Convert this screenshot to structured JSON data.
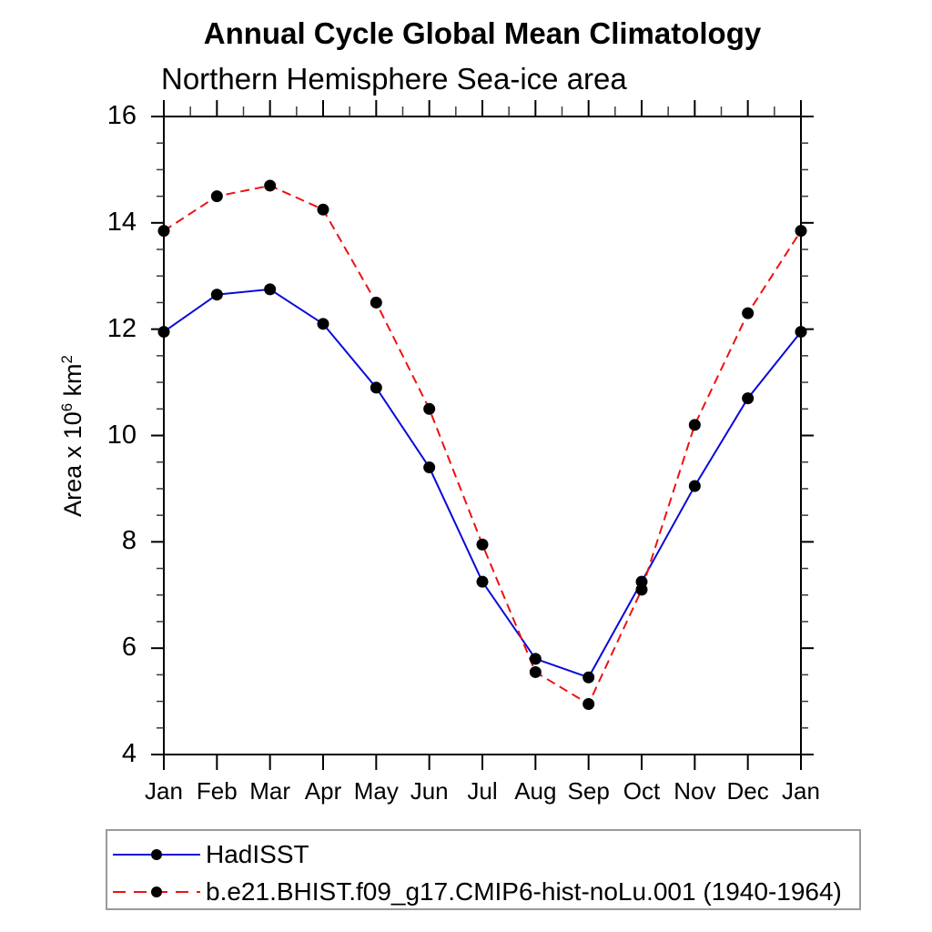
{
  "chart_data": {
    "type": "line",
    "title": "Annual Cycle Global Mean Climatology",
    "subtitle": "Northern Hemisphere Sea-ice area",
    "xlabel": "",
    "ylabel": "Area x 10^6 km^2",
    "ylabel_parts": {
      "prefix": "Area x 10",
      "sup1": "6",
      "mid": " km",
      "sup2": "2"
    },
    "ylim": [
      4,
      16
    ],
    "yticks": [
      4,
      6,
      8,
      10,
      12,
      14,
      16
    ],
    "ytick_minor_step": 0.5,
    "grid": false,
    "legend_position": "bottom-left-box",
    "categories": [
      "Jan",
      "Feb",
      "Mar",
      "Apr",
      "May",
      "Jun",
      "Jul",
      "Aug",
      "Sep",
      "Oct",
      "Nov",
      "Dec",
      "Jan"
    ],
    "series": [
      {
        "name": "HadISST",
        "color": "#0a0ad8",
        "line_style": "solid",
        "marker": "filled-circle",
        "marker_color": "#000000",
        "values": [
          11.95,
          12.65,
          12.75,
          12.1,
          10.9,
          9.4,
          7.25,
          5.8,
          5.45,
          7.25,
          9.05,
          10.7,
          11.95
        ]
      },
      {
        "name": "b.e21.BHIST.f09_g17.CMIP6-hist-noLu.001 (1940-1964)",
        "color": "#ee1111",
        "line_style": "dashed",
        "marker": "filled-circle",
        "marker_color": "#000000",
        "values": [
          13.85,
          14.5,
          14.7,
          14.25,
          12.5,
          10.5,
          7.95,
          5.55,
          4.95,
          7.1,
          10.2,
          12.3,
          13.85
        ]
      }
    ]
  }
}
